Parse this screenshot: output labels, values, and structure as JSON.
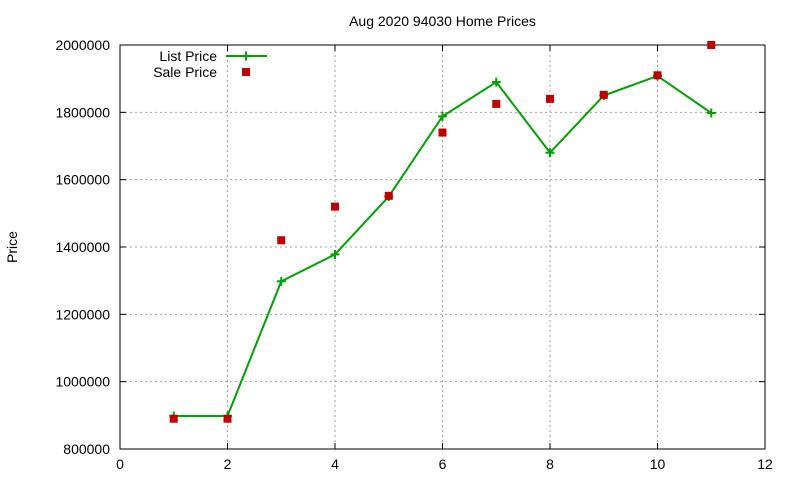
{
  "chart_data": {
    "type": "line",
    "title": "Aug 2020 94030 Home Prices",
    "xlabel": "",
    "ylabel": "Price",
    "xlim": [
      0,
      12
    ],
    "ylim": [
      800000,
      2000000
    ],
    "xticks": [
      0,
      2,
      4,
      6,
      8,
      10,
      12
    ],
    "yticks": [
      800000,
      1000000,
      1200000,
      1400000,
      1600000,
      1800000,
      2000000
    ],
    "grid": true,
    "legend_position": "top-left",
    "series": [
      {
        "name": "List Price",
        "style": "line+plus",
        "color": "#00a000",
        "x": [
          1,
          2,
          3,
          4,
          5,
          6,
          7,
          8,
          9,
          10,
          11
        ],
        "y": [
          898000,
          898000,
          1298000,
          1378000,
          1550000,
          1788000,
          1890000,
          1680000,
          1850000,
          1908000,
          1798000
        ]
      },
      {
        "name": "Sale Price",
        "style": "square",
        "color": "#c00000",
        "x": [
          1,
          2,
          3,
          4,
          5,
          6,
          7,
          8,
          9,
          10,
          11
        ],
        "y": [
          890000,
          890000,
          1420000,
          1520000,
          1552000,
          1740000,
          1825000,
          1840000,
          1852000,
          1910000,
          2000000
        ]
      }
    ]
  }
}
